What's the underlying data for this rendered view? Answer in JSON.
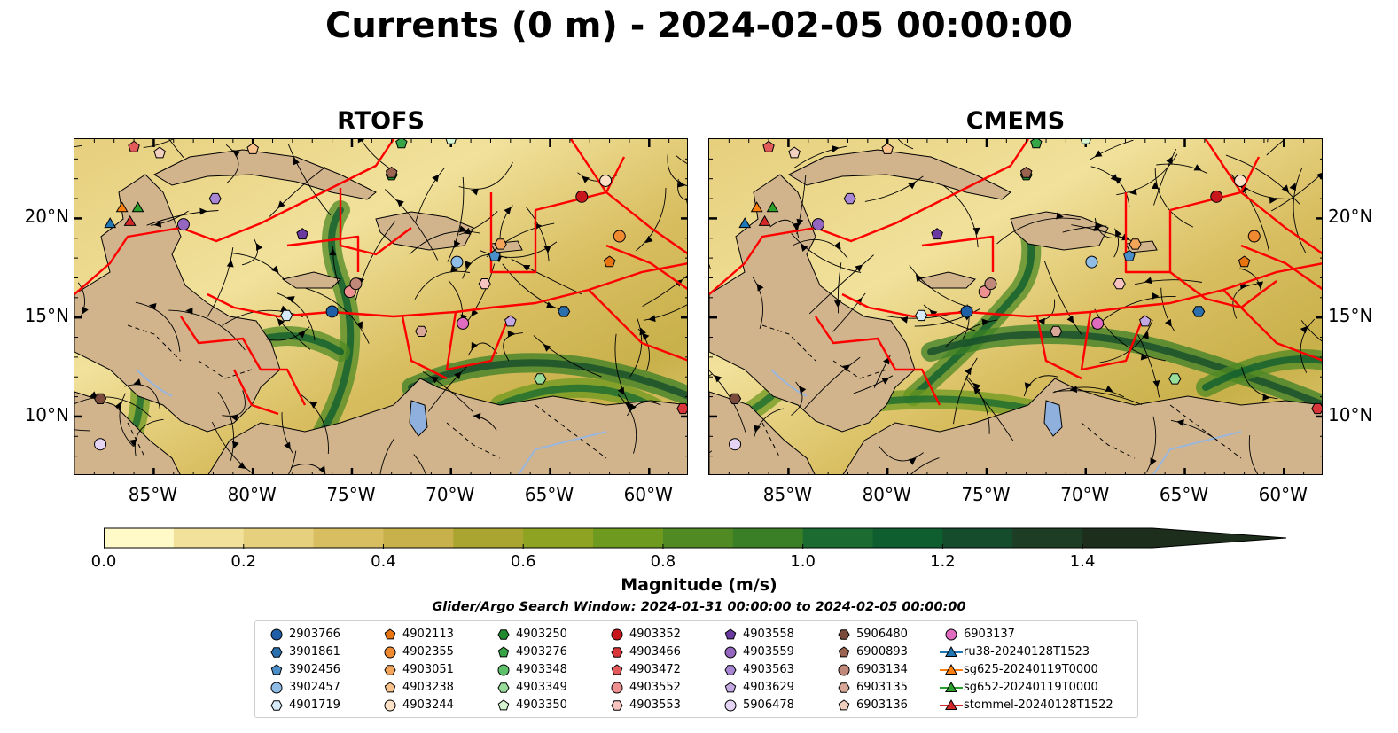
{
  "title": "Currents (0 m) - 2024-02-05 00:00:00",
  "panels": [
    {
      "title": "RTOFS"
    },
    {
      "title": "CMEMS"
    }
  ],
  "axes": {
    "lon_ticks": [
      "85°W",
      "80°W",
      "75°W",
      "70°W",
      "65°W",
      "60°W"
    ],
    "lat_ticks": [
      "20°N",
      "15°N",
      "10°N"
    ]
  },
  "colorbar": {
    "label": "Magnitude (m/s)",
    "ticks": [
      "0.0",
      "0.2",
      "0.4",
      "0.6",
      "0.8",
      "1.0",
      "1.2",
      "1.4"
    ],
    "range": [
      0,
      1.5
    ],
    "colors": [
      "#fffac8",
      "#f1e19b",
      "#e6cf7d",
      "#d9be61",
      "#c8b04a",
      "#aaa431",
      "#8ea322",
      "#6e9a20",
      "#4f8a23",
      "#3a7f26",
      "#1c6b30",
      "#0f5e30",
      "#154c2c",
      "#1d3e24",
      "#1d2e1d"
    ]
  },
  "search_window": "Glider/Argo Search Window: 2024-01-31 00:00:00 to 2024-02-05 00:00:00",
  "legend": [
    {
      "label": "2903766",
      "marker": "circle",
      "color": "#1f5fa8"
    },
    {
      "label": "3901861",
      "marker": "hexagon",
      "color": "#2b6fad"
    },
    {
      "label": "3902456",
      "marker": "pentagon",
      "color": "#4b8fc9"
    },
    {
      "label": "3902457",
      "marker": "circle",
      "color": "#8fbde6"
    },
    {
      "label": "4901719",
      "marker": "hexagon",
      "color": "#d6eaf8"
    },
    {
      "label": "4902113",
      "marker": "pentagon",
      "color": "#e8740f"
    },
    {
      "label": "4902355",
      "marker": "circle",
      "color": "#f08a30"
    },
    {
      "label": "4903051",
      "marker": "hexagon",
      "color": "#f4a55a"
    },
    {
      "label": "4903238",
      "marker": "pentagon",
      "color": "#f8c28a"
    },
    {
      "label": "4903244",
      "marker": "circle",
      "color": "#fde1c4"
    },
    {
      "label": "4903250",
      "marker": "hexagon",
      "color": "#1f8a2e"
    },
    {
      "label": "4903276",
      "marker": "pentagon",
      "color": "#35a546"
    },
    {
      "label": "4903348",
      "marker": "circle",
      "color": "#5cc16a"
    },
    {
      "label": "4903349",
      "marker": "hexagon",
      "color": "#98dd9c"
    },
    {
      "label": "4903350",
      "marker": "pentagon",
      "color": "#d6f5d0"
    },
    {
      "label": "4903352",
      "marker": "circle",
      "color": "#c8171c"
    },
    {
      "label": "4903466",
      "marker": "hexagon",
      "color": "#d8363a"
    },
    {
      "label": "4903472",
      "marker": "pentagon",
      "color": "#e35a5a"
    },
    {
      "label": "4903552",
      "marker": "circle",
      "color": "#ef9090"
    },
    {
      "label": "4903553",
      "marker": "hexagon",
      "color": "#f7c3c0"
    },
    {
      "label": "4903558",
      "marker": "pentagon",
      "color": "#6b3aa0"
    },
    {
      "label": "4903559",
      "marker": "circle",
      "color": "#9466c0"
    },
    {
      "label": "4903563",
      "marker": "hexagon",
      "color": "#a986d3"
    },
    {
      "label": "4903629",
      "marker": "pentagon",
      "color": "#c4a8e3"
    },
    {
      "label": "5906478",
      "marker": "circle",
      "color": "#e6d4f5"
    },
    {
      "label": "5906480",
      "marker": "hexagon",
      "color": "#7a4b3a"
    },
    {
      "label": "6900893",
      "marker": "pentagon",
      "color": "#9b6450"
    },
    {
      "label": "6903134",
      "marker": "circle",
      "color": "#c08878"
    },
    {
      "label": "6903135",
      "marker": "hexagon",
      "color": "#d9a898"
    },
    {
      "label": "6903136",
      "marker": "pentagon",
      "color": "#f2d0c0"
    },
    {
      "label": "6903137",
      "marker": "circle",
      "color": "#e06cc0"
    },
    {
      "label": "ru38-20240128T1523",
      "marker": "triangle-line",
      "color": "#1f77b4"
    },
    {
      "label": "sg625-20240119T0000",
      "marker": "triangle-line",
      "color": "#ff7f0e"
    },
    {
      "label": "sg652-20240119T0000",
      "marker": "triangle-line",
      "color": "#2ca02c"
    },
    {
      "label": "stommel-20240128T1522",
      "marker": "triangle-line",
      "color": "#d62728"
    }
  ]
}
